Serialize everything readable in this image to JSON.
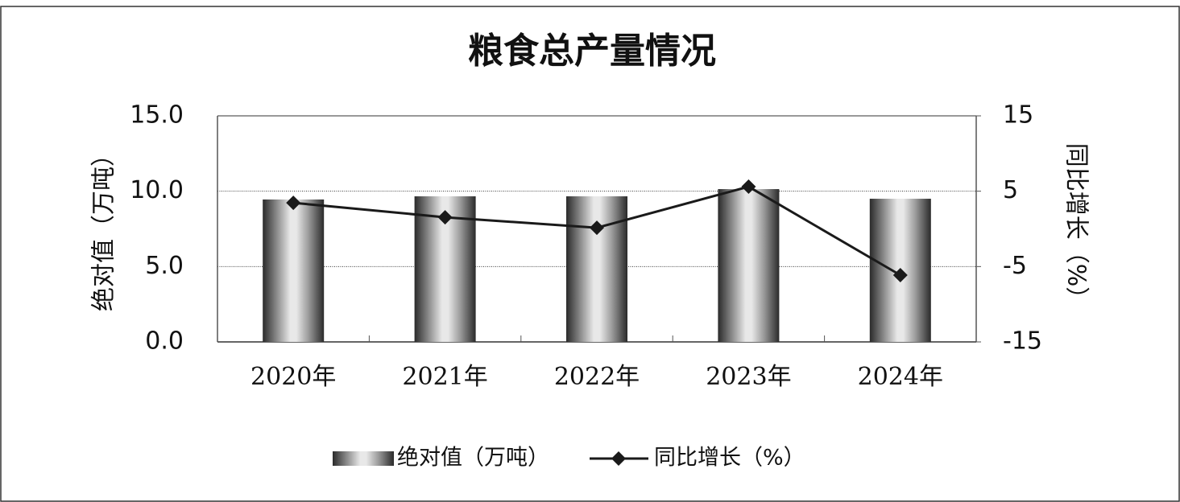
{
  "chart_data": {
    "type": "bar-line",
    "title": "粮食总产量情况",
    "y_label": "绝对值（万吨）",
    "y2_label": "同比增长（%）",
    "categories": [
      "2020年",
      "2021年",
      "2022年",
      "2023年",
      "2024年"
    ],
    "series": [
      {
        "name": "绝对值（万吨）",
        "type": "bar",
        "color": "#9a9a9a",
        "axis": "y",
        "values": [
          9.45,
          9.66,
          9.66,
          10.14,
          9.5
        ]
      },
      {
        "name": "同比增长（%）",
        "type": "line",
        "color": "#1a1a1a",
        "axis": "y2",
        "values": [
          3.46,
          1.54,
          0.15,
          5.6,
          -6.14
        ]
      }
    ],
    "ylim": [
      0,
      15
    ],
    "yticks": [
      {
        "value": 0,
        "label": "0.0"
      },
      {
        "value": 5,
        "label": "5.0"
      },
      {
        "value": 10,
        "label": "10.0"
      },
      {
        "value": 15,
        "label": "15.0"
      }
    ],
    "y2lim": [
      -15,
      15
    ],
    "y2ticks": [
      -15,
      -5,
      5,
      15
    ],
    "grid": true,
    "legend": "bottom"
  }
}
